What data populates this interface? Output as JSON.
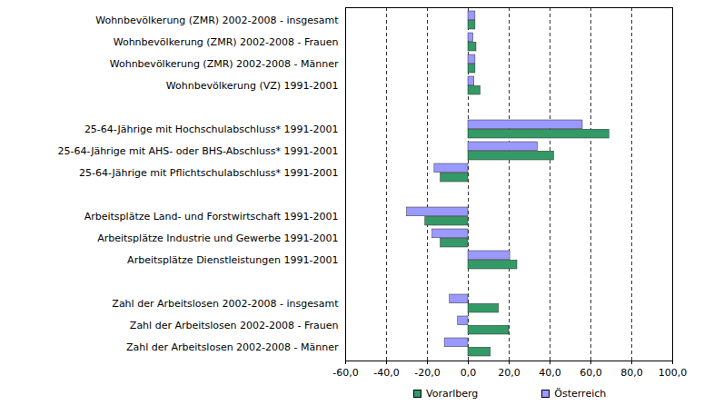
{
  "chart_data": {
    "type": "bar",
    "orientation": "horizontal",
    "grid": true,
    "legend": "bottom",
    "categories": [
      "Wohnbevölkerung (ZMR) 2002-2008 - insgesamt",
      "Wohnbevölkerung (ZMR) 2002-2008 - Frauen",
      "Wohnbevölkerung (ZMR) 2002-2008 - Männer",
      "Wohnbevölkerung (VZ) 1991-2001",
      null,
      "25-64-Jährige mit Hochschulabschluss* 1991-2001",
      "25-64-Jährige mit AHS- oder BHS-Abschluss* 1991-2001",
      "25-64-Jährige mit Pflichtschulabschluss* 1991-2001",
      null,
      "Arbeitsplätze Land- und Forstwirtschaft 1991-2001",
      "Arbeitsplätze Industrie und Gewerbe 1991-2001",
      "Arbeitsplätze Dienstleistungen 1991-2001",
      null,
      "Zahl der Arbeitslosen 2002-2008 - insgesamt",
      "Zahl der Arbeitslosen 2002-2008 - Frauen",
      "Zahl der Arbeitslosen 2002-2008 - Männer"
    ],
    "series": [
      {
        "name": "Vorarlberg",
        "color": "#339966",
        "values": [
          3.5,
          4,
          3.5,
          6,
          null,
          69,
          42,
          -13.5,
          null,
          -21,
          -13.5,
          24,
          null,
          15,
          20,
          11
        ]
      },
      {
        "name": "Österreich",
        "color": "#9999ff",
        "values": [
          3.5,
          2.5,
          3.5,
          3,
          null,
          56,
          34,
          -16.5,
          null,
          -30,
          -17.5,
          20.5,
          null,
          -9,
          -5,
          -11.5
        ]
      }
    ],
    "xlim": [
      -60,
      100
    ],
    "xticks": [
      {
        "value": -60,
        "label": "-60,0"
      },
      {
        "value": -40,
        "label": "-40,0"
      },
      {
        "value": -20,
        "label": "-20,0"
      },
      {
        "value": 0,
        "label": "0,0"
      },
      {
        "value": 20,
        "label": "20,0"
      },
      {
        "value": 40,
        "label": "40,0"
      },
      {
        "value": 60,
        "label": "60,0"
      },
      {
        "value": 80,
        "label": "80,0"
      },
      {
        "value": 100,
        "label": "100,0"
      }
    ]
  }
}
